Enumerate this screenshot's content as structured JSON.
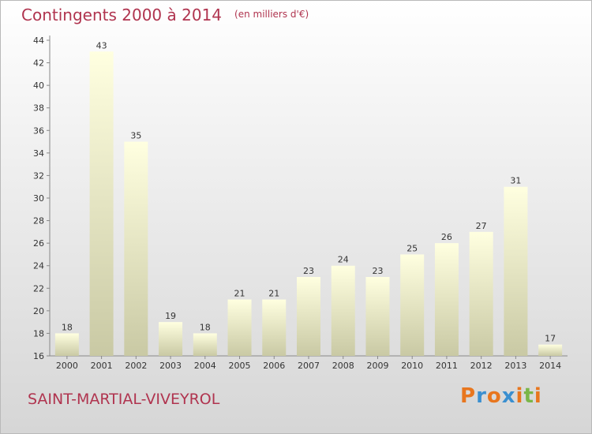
{
  "chart_data": {
    "type": "bar",
    "title": "Contingents 2000 à 2014",
    "subtitle": "(en milliers d'€)",
    "categories": [
      "2000",
      "2001",
      "2002",
      "2003",
      "2004",
      "2005",
      "2006",
      "2007",
      "2008",
      "2009",
      "2010",
      "2011",
      "2012",
      "2013",
      "2014"
    ],
    "values": [
      18,
      43,
      35,
      19,
      18,
      21,
      21,
      23,
      24,
      23,
      25,
      26,
      27,
      31,
      17
    ],
    "ylim": [
      16,
      44
    ],
    "yticks": [
      16,
      18,
      20,
      22,
      24,
      26,
      28,
      30,
      32,
      34,
      36,
      38,
      40,
      42,
      44
    ],
    "grid": false,
    "data_labels": true
  },
  "footer": {
    "commune": "SAINT-MARTIAL-VIVEYROL"
  },
  "logo": {
    "text": "Proxiti",
    "letters": [
      "P",
      "r",
      "o",
      "x",
      "i",
      "t",
      "i"
    ],
    "colors": [
      "#e8761e",
      "#3a8fd0",
      "#e8761e",
      "#3a8fd0",
      "#e8761e",
      "#7ab648",
      "#e8761e"
    ]
  },
  "colors": {
    "title": "#b0344f",
    "bar_top": "#ffffe0",
    "bar_bottom": "#c9c9a4",
    "axis": "#888888",
    "label": "#333333"
  }
}
